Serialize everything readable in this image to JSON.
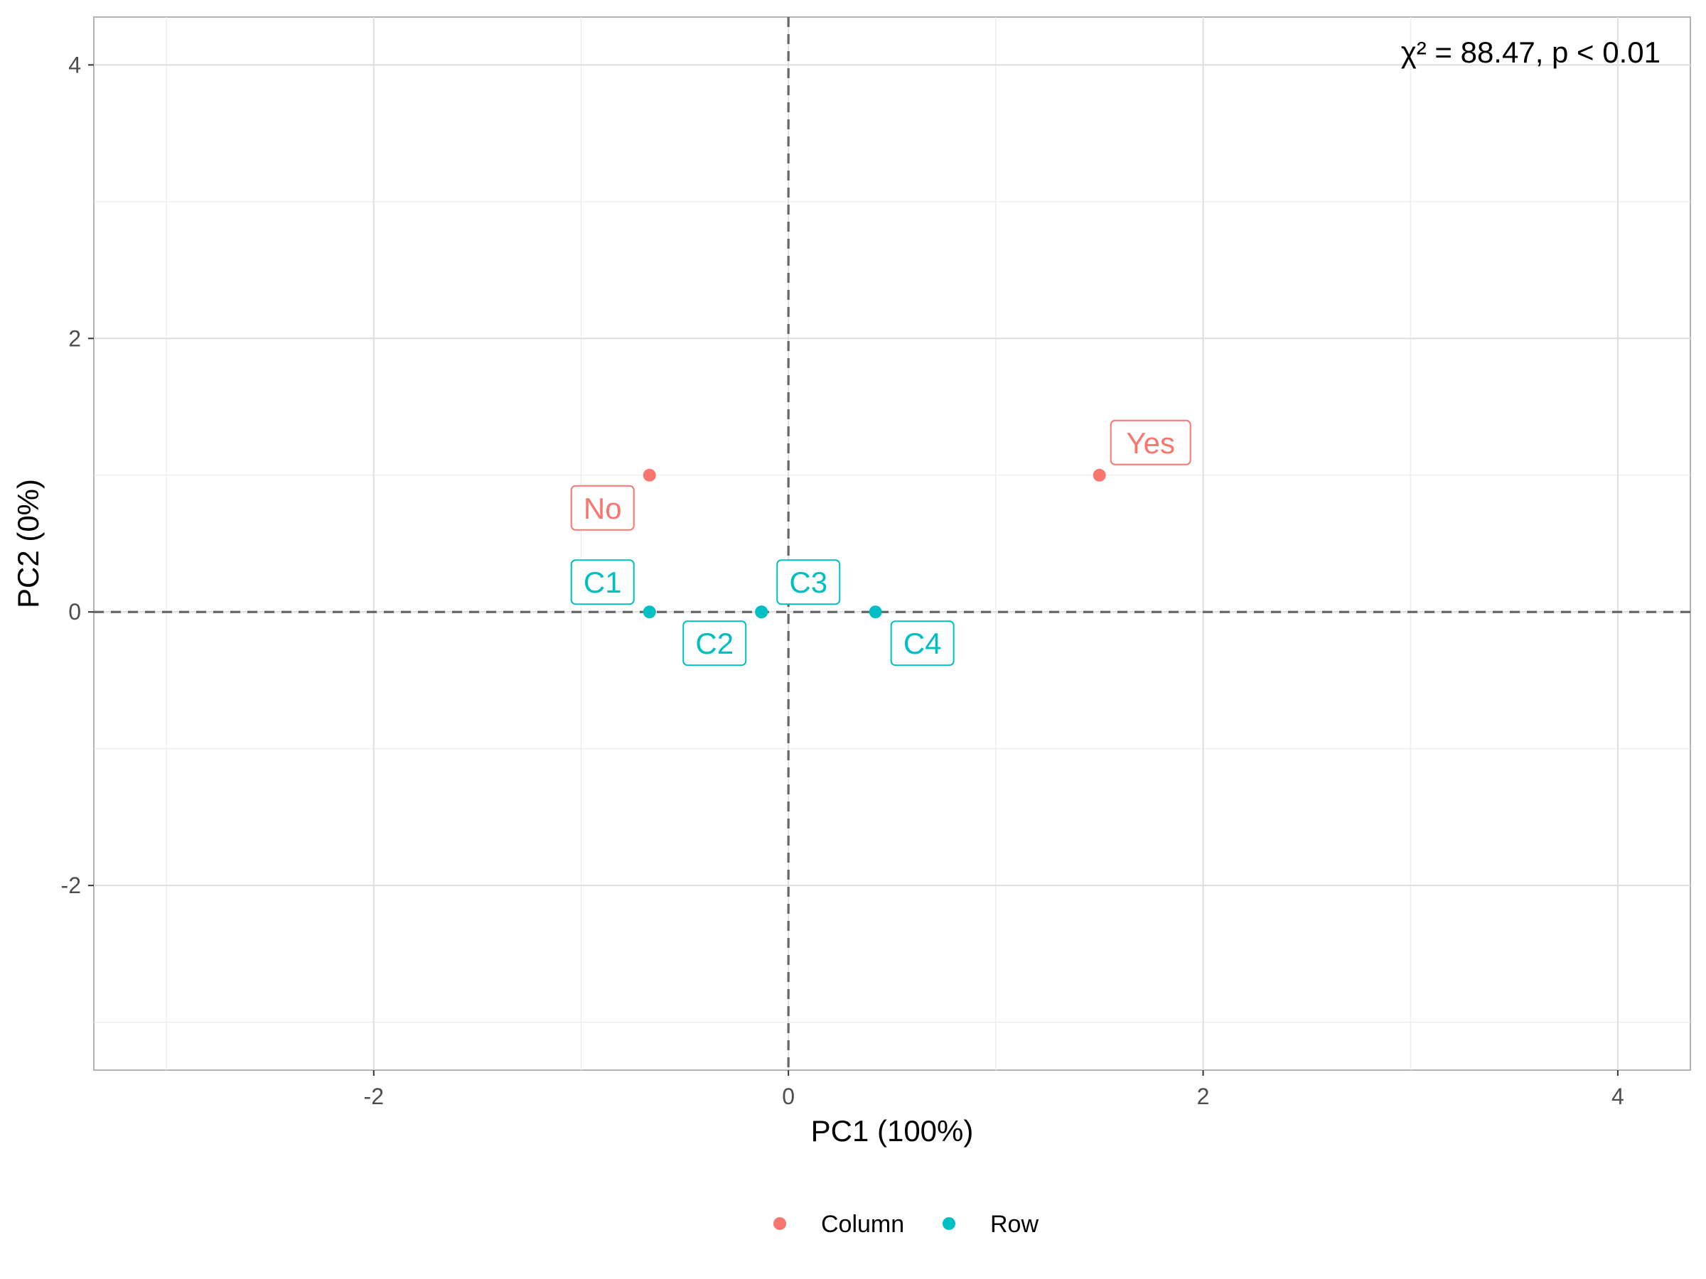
{
  "chart_data": {
    "type": "scatter",
    "title": "",
    "xlabel": "PC1 (100%)",
    "ylabel": "PC2 (0%)",
    "xlim": [
      -3.35,
      4.35
    ],
    "ylim": [
      -3.35,
      4.35
    ],
    "xticks": [
      -2,
      0,
      2,
      4
    ],
    "yticks": [
      -2,
      0,
      2,
      4
    ],
    "xtick_labels": [
      "-2",
      "0",
      "2",
      "4"
    ],
    "ytick_labels": [
      "-2",
      "0",
      "2",
      "4"
    ],
    "grid": true,
    "reference_lines": {
      "x": 0,
      "y": 0,
      "style": "dashed"
    },
    "annotation": "χ² = 88.47, p < 0.01",
    "legend_position": "bottom",
    "series": [
      {
        "name": "Column",
        "color": "#F8766D",
        "points": [
          {
            "label": "No",
            "x": -0.67,
            "y": 1.0
          },
          {
            "label": "Yes",
            "x": 1.5,
            "y": 1.0
          }
        ]
      },
      {
        "name": "Row",
        "color": "#00BFC4",
        "points": [
          {
            "label": "C1",
            "x": -0.67,
            "y": 0.0
          },
          {
            "label": "C2",
            "x": -0.13,
            "y": 0.0
          },
          {
            "label": "C3",
            "x": -0.13,
            "y": 0.0
          },
          {
            "label": "C4",
            "x": 0.42,
            "y": 0.0
          }
        ]
      }
    ]
  }
}
